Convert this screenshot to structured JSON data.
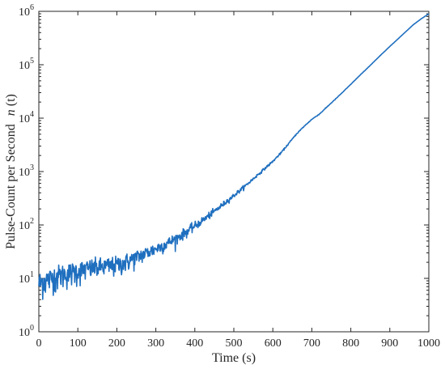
{
  "chart_data": {
    "type": "line",
    "title": "",
    "xlabel": "Time (s)",
    "ylabel_text": "Pulse-Count per Second",
    "ylabel_symbol": "n",
    "ylabel_arg": "(t)",
    "xlim": [
      0,
      1000
    ],
    "ylim": [
      1,
      1000000
    ],
    "yscale": "log",
    "grid": false,
    "legend": "none",
    "line_color": "#1f6fbf",
    "x_ticks": [
      0,
      100,
      200,
      300,
      400,
      500,
      600,
      700,
      800,
      900,
      1000
    ],
    "x_tick_labels": [
      "0",
      "100",
      "200",
      "300",
      "400",
      "500",
      "600",
      "700",
      "800",
      "900",
      "1000"
    ],
    "y_ticks": [
      1,
      10,
      100,
      1000,
      10000,
      100000,
      1000000
    ],
    "y_tick_exponents": [
      "0",
      "1",
      "2",
      "3",
      "4",
      "5",
      "6"
    ],
    "series": [
      {
        "x": [
          0,
          10,
          20,
          30,
          40,
          50,
          60,
          80,
          100,
          120,
          140,
          160,
          180,
          200,
          220,
          240,
          260,
          280,
          300,
          320,
          340,
          360,
          380,
          400,
          420,
          440,
          460,
          480,
          500,
          520,
          540,
          560,
          580,
          600,
          620,
          640,
          660,
          680,
          700,
          720,
          740,
          760,
          780,
          800,
          820,
          840,
          860,
          880,
          900,
          920,
          940,
          960,
          980,
          1000
        ],
        "y": [
          8,
          9,
          9.5,
          10,
          11,
          11.5,
          12,
          13,
          14,
          15,
          16,
          16.5,
          17,
          18,
          20,
          23,
          27,
          31,
          36,
          42,
          50,
          61,
          76,
          96,
          122,
          158,
          205,
          270,
          355,
          470,
          630,
          850,
          1150,
          1550,
          2200,
          3300,
          5000,
          7000,
          9500,
          12000,
          16500,
          22500,
          31000,
          43000,
          60000,
          83000,
          115000,
          160000,
          220000,
          300000,
          410000,
          560000,
          720000,
          900000
        ]
      }
    ]
  }
}
